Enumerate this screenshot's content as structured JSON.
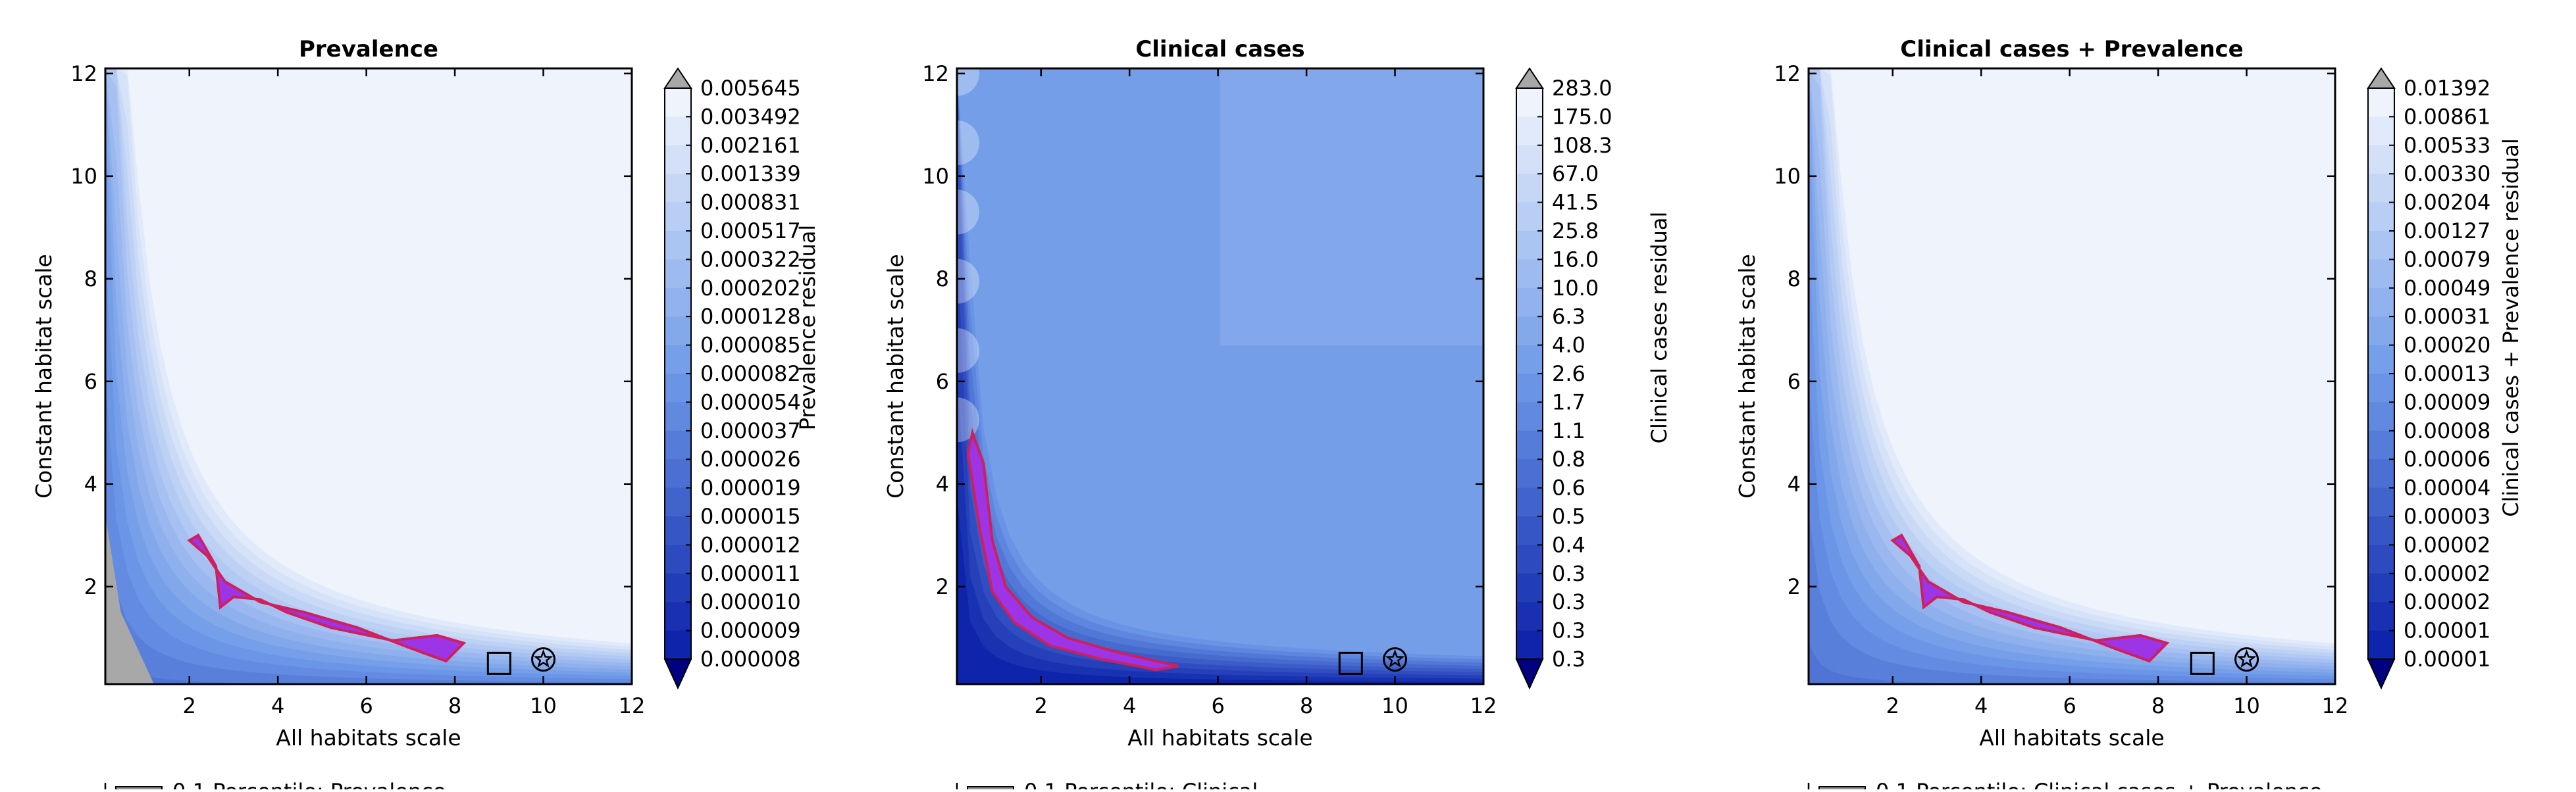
{
  "chart_data": [
    {
      "type": "contour",
      "title": "Prevalence",
      "xlabel": "All habitats scale",
      "ylabel": "Constant habitat scale",
      "colorbar_label": "Prevalence residual",
      "xlim": [
        0.1,
        12
      ],
      "ylim": [
        0.1,
        12.1
      ],
      "xticks": [
        "2",
        "4",
        "6",
        "8",
        "10",
        "12"
      ],
      "yticks": [
        "2",
        "4",
        "6",
        "8",
        "10",
        "12"
      ],
      "colorbar_levels": [
        "0.005645",
        "0.003492",
        "0.002161",
        "0.001339",
        "0.000831",
        "0.000517",
        "0.000322",
        "0.000202",
        "0.000128",
        "0.000085",
        "0.000082",
        "0.000054",
        "0.000037",
        "0.000026",
        "0.000019",
        "0.000015",
        "0.000012",
        "0.000011",
        "0.000010",
        "0.000009",
        "0.000008"
      ],
      "highlight_region": [
        [
          2.0,
          2.9
        ],
        [
          2.4,
          2.6
        ],
        [
          2.8,
          2.1
        ],
        [
          3.6,
          1.7
        ],
        [
          4.6,
          1.5
        ],
        [
          5.8,
          1.2
        ],
        [
          7.0,
          0.8
        ],
        [
          7.8,
          0.55
        ],
        [
          8.2,
          0.9
        ],
        [
          7.6,
          1.05
        ],
        [
          6.6,
          0.95
        ],
        [
          5.2,
          1.2
        ],
        [
          4.2,
          1.5
        ],
        [
          3.6,
          1.75
        ],
        [
          3.0,
          1.8
        ],
        [
          2.7,
          1.6
        ],
        [
          2.6,
          2.4
        ],
        [
          2.2,
          3.0
        ]
      ],
      "markers": [
        {
          "symbol": "square",
          "x": 9.0,
          "y": 0.3
        },
        {
          "symbol": "star",
          "x": 10.0,
          "y": 0.35
        }
      ],
      "legend_partial": "0.1 Percentile: Prevalence"
    },
    {
      "type": "contour",
      "title": "Clinical cases",
      "xlabel": "All habitats scale",
      "ylabel": "Constant habitat scale",
      "colorbar_label": "Clinical cases residual",
      "xlim": [
        0.1,
        12
      ],
      "ylim": [
        0.1,
        12.1
      ],
      "xticks": [
        "2",
        "4",
        "6",
        "8",
        "10",
        "12"
      ],
      "yticks": [
        "2",
        "4",
        "6",
        "8",
        "10",
        "12"
      ],
      "colorbar_levels": [
        "283.0",
        "175.0",
        "108.3",
        "67.0",
        "41.5",
        "25.8",
        "16.0",
        "10.0",
        "6.3",
        "4.0",
        "2.6",
        "1.7",
        "1.1",
        "0.8",
        "0.6",
        "0.5",
        "0.4",
        "0.3",
        "0.3",
        "0.3",
        "0.3"
      ],
      "highlight_region": [
        [
          0.45,
          5.0
        ],
        [
          0.7,
          4.4
        ],
        [
          0.9,
          2.9
        ],
        [
          1.2,
          2.0
        ],
        [
          1.8,
          1.4
        ],
        [
          2.6,
          1.0
        ],
        [
          3.6,
          0.75
        ],
        [
          4.6,
          0.55
        ],
        [
          5.1,
          0.45
        ],
        [
          4.6,
          0.38
        ],
        [
          3.4,
          0.58
        ],
        [
          2.2,
          0.85
        ],
        [
          1.4,
          1.3
        ],
        [
          0.9,
          1.9
        ],
        [
          0.6,
          3.2
        ],
        [
          0.35,
          4.6
        ]
      ],
      "markers": [
        {
          "symbol": "square",
          "x": 9.0,
          "y": 0.3
        },
        {
          "symbol": "star",
          "x": 10.0,
          "y": 0.35
        }
      ],
      "legend_partial": "0.1 Percentile: Clinical"
    },
    {
      "type": "contour",
      "title": "Clinical cases + Prevalence",
      "xlabel": "All habitats scale",
      "ylabel": "Constant habitat scale",
      "colorbar_label": "Clinical cases + Prevalence residual",
      "xlim": [
        0.1,
        12
      ],
      "ylim": [
        0.1,
        12.1
      ],
      "xticks": [
        "2",
        "4",
        "6",
        "8",
        "10",
        "12"
      ],
      "yticks": [
        "2",
        "4",
        "6",
        "8",
        "10",
        "12"
      ],
      "colorbar_levels": [
        "0.01392",
        "0.00861",
        "0.00533",
        "0.00330",
        "0.00204",
        "0.00127",
        "0.00079",
        "0.00049",
        "0.00031",
        "0.00020",
        "0.00013",
        "0.00009",
        "0.00008",
        "0.00006",
        "0.00004",
        "0.00003",
        "0.00002",
        "0.00002",
        "0.00002",
        "0.00001",
        "0.00001"
      ],
      "highlight_region": [
        [
          2.0,
          2.9
        ],
        [
          2.4,
          2.6
        ],
        [
          2.8,
          2.1
        ],
        [
          3.6,
          1.7
        ],
        [
          4.6,
          1.5
        ],
        [
          5.8,
          1.2
        ],
        [
          7.0,
          0.8
        ],
        [
          7.8,
          0.55
        ],
        [
          8.2,
          0.9
        ],
        [
          7.6,
          1.05
        ],
        [
          6.6,
          0.95
        ],
        [
          5.2,
          1.2
        ],
        [
          4.2,
          1.5
        ],
        [
          3.6,
          1.75
        ],
        [
          3.0,
          1.8
        ],
        [
          2.7,
          1.6
        ],
        [
          2.6,
          2.4
        ],
        [
          2.2,
          3.0
        ]
      ],
      "markers": [
        {
          "symbol": "square",
          "x": 9.0,
          "y": 0.3
        },
        {
          "symbol": "star",
          "x": 10.0,
          "y": 0.35
        }
      ],
      "legend_partial": "0.1 Percentile: Clinical cases + Prevalence"
    }
  ],
  "colors": {
    "fill_light": "#eef3fc",
    "fill_mid": "#6d99e8",
    "fill_dark": "#0a1fa8",
    "region_fill": "#9b35e6",
    "region_edge": "#d0205a",
    "extend_high": "#a8a8a8",
    "extend_low": "#000080"
  }
}
